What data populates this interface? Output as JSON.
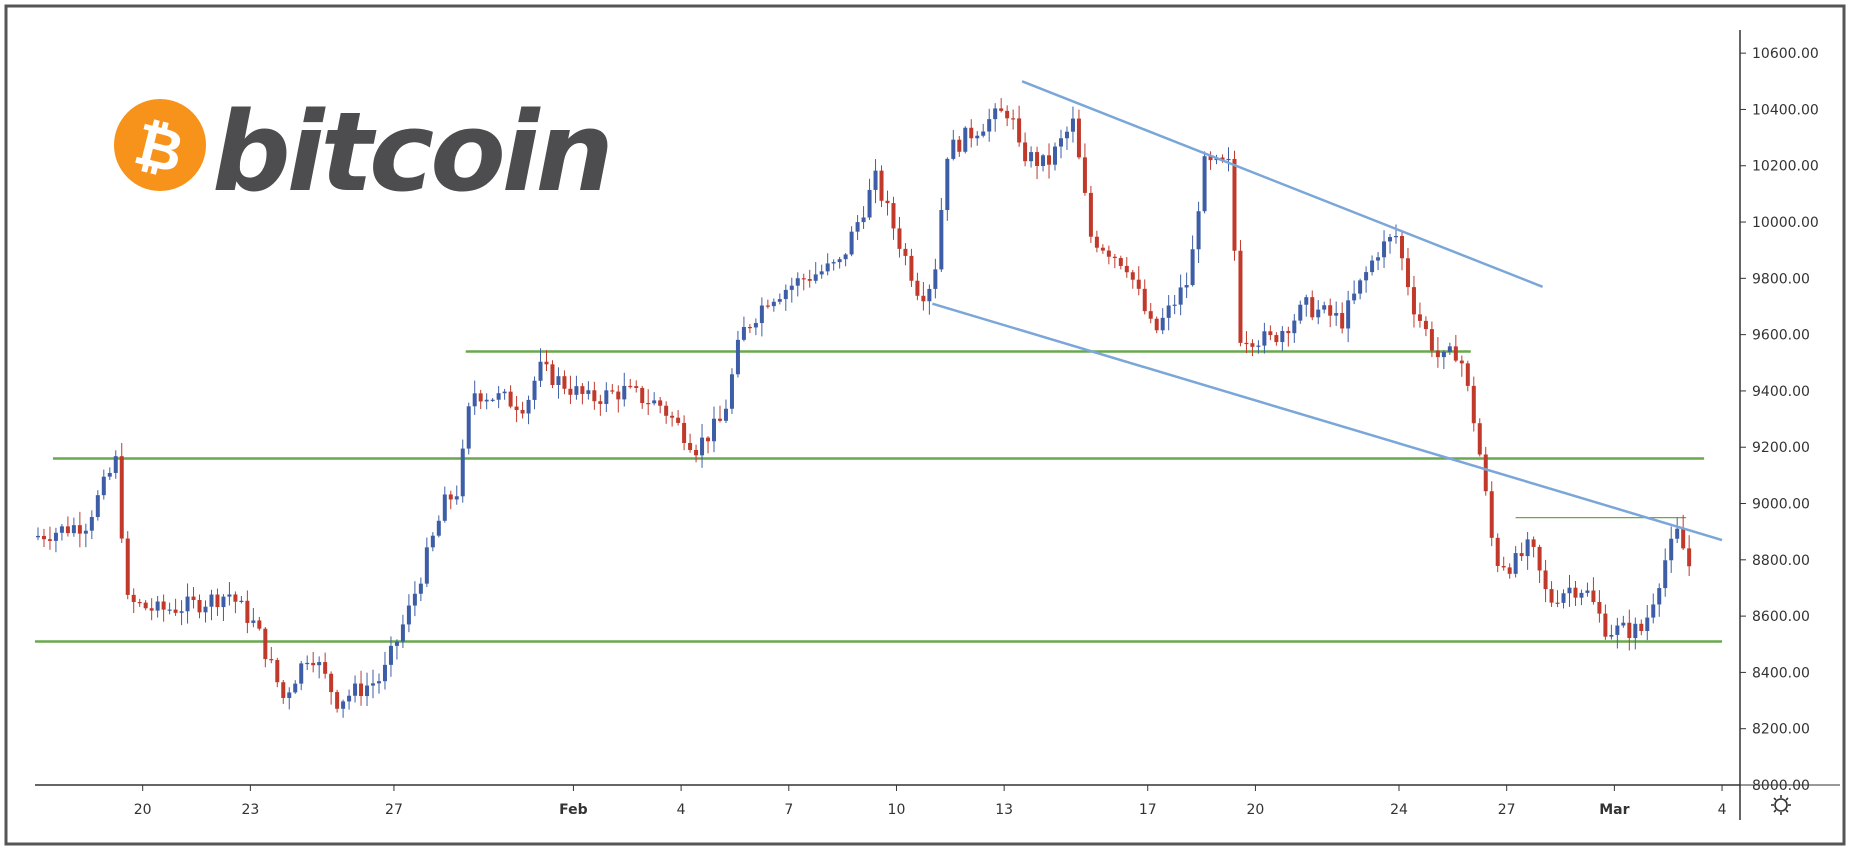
{
  "logo": {
    "text": "bitcoin",
    "symbol": "₿",
    "color": "#f7931a",
    "text_color": "#4d4d4f"
  },
  "colors": {
    "up": "#3d5ea6",
    "down": "#c0392b",
    "support": "#6aa84f",
    "channel": "#7aa6d8",
    "axis": "#333333",
    "frame": "#555555"
  },
  "chart_data": {
    "type": "candlestick",
    "instrument": "bitcoin",
    "y_axis": {
      "min": 8000,
      "max": 10700,
      "ticks": [
        "10600.00",
        "10400.00",
        "10200.00",
        "10000.00",
        "9800.00",
        "9600.00",
        "9400.00",
        "9200.00",
        "9000.00",
        "8800.00",
        "8600.00",
        "8400.00",
        "8200.00",
        "8000.00"
      ]
    },
    "x_axis": {
      "start": "2020-01-17",
      "end": "2020-03-04",
      "ticks": [
        {
          "date": "2020-01-20",
          "label": "20"
        },
        {
          "date": "2020-01-23",
          "label": "23"
        },
        {
          "date": "2020-01-27",
          "label": "27"
        },
        {
          "date": "2020-02-01",
          "label": "Feb"
        },
        {
          "date": "2020-02-04",
          "label": "4"
        },
        {
          "date": "2020-02-07",
          "label": "7"
        },
        {
          "date": "2020-02-10",
          "label": "10"
        },
        {
          "date": "2020-02-13",
          "label": "13"
        },
        {
          "date": "2020-02-17",
          "label": "17"
        },
        {
          "date": "2020-02-20",
          "label": "20"
        },
        {
          "date": "2020-02-24",
          "label": "24"
        },
        {
          "date": "2020-02-27",
          "label": "27"
        },
        {
          "date": "2020-03-01",
          "label": "Mar"
        },
        {
          "date": "2020-03-04",
          "label": "4"
        }
      ]
    },
    "anchors": [
      [
        "2020-01-17T00:00",
        8880
      ],
      [
        "2020-01-18T12:00",
        8930
      ],
      [
        "2020-01-19T09:00",
        9160
      ],
      [
        "2020-01-19T15:00",
        8650
      ],
      [
        "2020-01-20T12:00",
        8620
      ],
      [
        "2020-01-21T12:00",
        8640
      ],
      [
        "2020-01-22T12:00",
        8680
      ],
      [
        "2020-01-23T06:00",
        8560
      ],
      [
        "2020-01-24T00:00",
        8310
      ],
      [
        "2020-01-24T18:00",
        8480
      ],
      [
        "2020-01-25T12:00",
        8300
      ],
      [
        "2020-01-26T18:00",
        8380
      ],
      [
        "2020-01-27T12:00",
        8620
      ],
      [
        "2020-01-28T12:00",
        9000
      ],
      [
        "2020-01-28T21:00",
        9050
      ],
      [
        "2020-01-29T06:00",
        9400
      ],
      [
        "2020-01-30T18:00",
        9350
      ],
      [
        "2020-01-31T03:00",
        9480
      ],
      [
        "2020-02-01T12:00",
        9370
      ],
      [
        "2020-02-02T12:00",
        9400
      ],
      [
        "2020-02-03T12:00",
        9350
      ],
      [
        "2020-02-04T12:00",
        9200
      ],
      [
        "2020-02-05T06:00",
        9300
      ],
      [
        "2020-02-05T18:00",
        9600
      ],
      [
        "2020-02-06T12:00",
        9730
      ],
      [
        "2020-02-07T12:00",
        9800
      ],
      [
        "2020-02-08T12:00",
        9850
      ],
      [
        "2020-02-09T12:00",
        10150
      ],
      [
        "2020-02-10T06:00",
        9900
      ],
      [
        "2020-02-10T18:00",
        9740
      ],
      [
        "2020-02-11T03:00",
        9800
      ],
      [
        "2020-02-11T12:00",
        10250
      ],
      [
        "2020-02-12T12:00",
        10350
      ],
      [
        "2020-02-13T06:00",
        10400
      ],
      [
        "2020-02-13T12:00",
        10250
      ],
      [
        "2020-02-14T06:00",
        10200
      ],
      [
        "2020-02-15T00:00",
        10350
      ],
      [
        "2020-02-15T12:00",
        9950
      ],
      [
        "2020-02-16T12:00",
        9850
      ],
      [
        "2020-02-17T06:00",
        9600
      ],
      [
        "2020-02-17T18:00",
        9700
      ],
      [
        "2020-02-18T06:00",
        9800
      ],
      [
        "2020-02-18T15:00",
        10200
      ],
      [
        "2020-02-19T09:00",
        10200
      ],
      [
        "2020-02-19T15:00",
        9600
      ],
      [
        "2020-02-20T12:00",
        9580
      ],
      [
        "2020-02-21T12:00",
        9700
      ],
      [
        "2020-02-22T12:00",
        9650
      ],
      [
        "2020-02-23T12:00",
        9900
      ],
      [
        "2020-02-24T00:00",
        9950
      ],
      [
        "2020-02-24T12:00",
        9700
      ],
      [
        "2020-02-25T06:00",
        9500
      ],
      [
        "2020-02-25T18:00",
        9550
      ],
      [
        "2020-02-26T06:00",
        9250
      ],
      [
        "2020-02-26T18:00",
        8800
      ],
      [
        "2020-02-27T06:00",
        8780
      ],
      [
        "2020-02-27T18:00",
        8850
      ],
      [
        "2020-02-28T06:00",
        8650
      ],
      [
        "2020-02-28T18:00",
        8700
      ],
      [
        "2020-02-29T06:00",
        8700
      ],
      [
        "2020-02-29T21:00",
        8550
      ],
      [
        "2020-03-01T09:00",
        8550
      ],
      [
        "2020-03-01T21:00",
        8550
      ],
      [
        "2020-03-02T12:00",
        8800
      ],
      [
        "2020-03-02T21:00",
        8900
      ],
      [
        "2020-03-03T03:00",
        8780
      ]
    ],
    "support_lines": [
      {
        "price": 9540,
        "from": "2020-01-29T00:00",
        "to": "2020-02-26T00:00"
      },
      {
        "price": 9160,
        "from": "2020-01-17T12:00",
        "to": "2020-03-03T12:00"
      },
      {
        "price": 8510,
        "from": "2020-01-17T00:00",
        "to": "2020-03-04T00:00"
      }
    ],
    "resistance_short": {
      "price": 8950,
      "from": "2020-02-27T06:00",
      "to": "2020-03-03T00:00"
    },
    "channel_lines": [
      {
        "from": [
          "2020-02-13T12:00",
          10500
        ],
        "to": [
          "2020-02-28T00:00",
          9770
        ]
      },
      {
        "from": [
          "2020-02-11T00:00",
          9710
        ],
        "to": [
          "2020-03-04T00:00",
          8870
        ]
      }
    ]
  }
}
